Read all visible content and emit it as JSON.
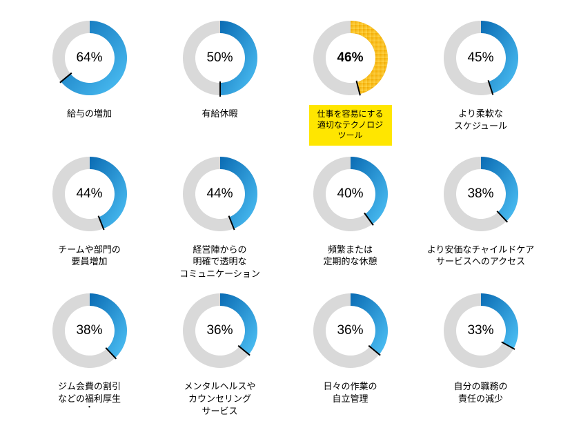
{
  "chart": {
    "type": "donut-grid",
    "background_color": "#ffffff",
    "donut": {
      "outer_radius": 54,
      "inner_radius": 36,
      "track_color": "#d9d9d9",
      "fill_gradient": {
        "from": "#0a6bb3",
        "to": "#4fc3f7"
      },
      "highlight_gradient": {
        "from": "#f2a900",
        "to": "#ffd84d"
      },
      "highlight_dot_color": "#f5b400",
      "tick_color": "#000000",
      "tick_length": 16,
      "start_angle_deg": -90,
      "direction": "clockwise"
    },
    "pct_fontsize": 19,
    "pct_fontweight_normal": 400,
    "pct_fontweight_highlight": 700,
    "label_fontsize": 13,
    "label_fontsize_highlight": 12,
    "label_highlight_bg": "#ffe600"
  },
  "items": [
    {
      "value": 64,
      "pct_text": "64%",
      "label": "給与の増加",
      "highlight": false
    },
    {
      "value": 50,
      "pct_text": "50%",
      "label": "有給休暇",
      "highlight": false
    },
    {
      "value": 46,
      "pct_text": "46%",
      "label": "仕事を容易にする\n適切なテクノロジ\nツール",
      "highlight": true
    },
    {
      "value": 45,
      "pct_text": "45%",
      "label": "より柔軟な\nスケジュール",
      "highlight": false
    },
    {
      "value": 44,
      "pct_text": "44%",
      "label": "チームや部門の\n要員増加",
      "highlight": false
    },
    {
      "value": 44,
      "pct_text": "44%",
      "label": "経営陣からの\n明確で透明な\nコミュニケーション",
      "highlight": false
    },
    {
      "value": 40,
      "pct_text": "40%",
      "label": "頻繁または\n定期的な休憩",
      "highlight": false
    },
    {
      "value": 38,
      "pct_text": "38%",
      "label": "より安価なチャイルドケア\nサービスへのアクセス",
      "highlight": false
    },
    {
      "value": 38,
      "pct_text": "38%",
      "label": "ジム会費の割引\nなどの福利厚生",
      "highlight": false,
      "trailing_dot": true
    },
    {
      "value": 36,
      "pct_text": "36%",
      "label": "メンタルヘルスや\nカウンセリング\nサービス",
      "highlight": false
    },
    {
      "value": 36,
      "pct_text": "36%",
      "label": "日々の作業の\n自立管理",
      "highlight": false
    },
    {
      "value": 33,
      "pct_text": "33%",
      "label": "自分の職務の\n責任の減少",
      "highlight": false
    }
  ]
}
